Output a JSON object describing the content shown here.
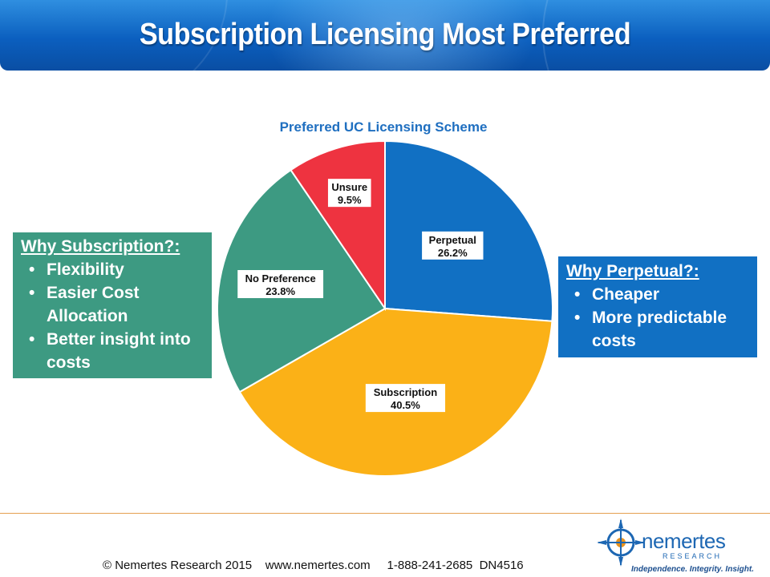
{
  "slide": {
    "title": "Subscription Licensing Most Preferred"
  },
  "left_box": {
    "heading": "Why Subscription?:",
    "items": [
      "Flexibility",
      "Easier Cost Allocation",
      "Better insight into costs"
    ]
  },
  "right_box": {
    "heading": "Why Perpetual?:",
    "items": [
      "Cheaper",
      "More predictable costs"
    ]
  },
  "footer": {
    "text": "© Nemertes Research 2015    www.nemertes.com     1-888-241-2685  DN4516"
  },
  "logo": {
    "name": "nemertes",
    "sub": "RESEARCH",
    "tagline": "Independence. Integrity. Insight."
  },
  "colors": {
    "perpetual": "#1170c3",
    "subscription": "#fbb117",
    "no_preference": "#3d9a82",
    "unsure": "#ee3340",
    "chart_title": "#1f6fc0"
  },
  "chart_data": {
    "type": "pie",
    "title": "Preferred UC Licensing Scheme",
    "slices": [
      {
        "label": "Perpetual",
        "value": 26.2,
        "value_label": "26.2%"
      },
      {
        "label": "Subscription",
        "value": 40.5,
        "value_label": "40.5%"
      },
      {
        "label": "No Preference",
        "value": 23.8,
        "value_label": "23.8%"
      },
      {
        "label": "Unsure",
        "value": 9.5,
        "value_label": "9.5%"
      }
    ],
    "start": "12 o'clock",
    "direction": "clockwise",
    "data_labels": "inside"
  }
}
